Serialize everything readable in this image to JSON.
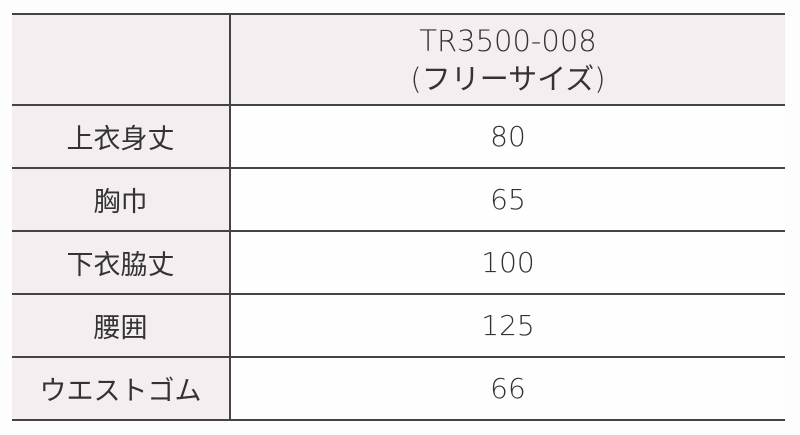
{
  "header": {
    "product_code": "TR3500-008",
    "size": "(フリーサイズ)"
  },
  "rows": [
    {
      "label": "上衣身丈",
      "value": "80"
    },
    {
      "label": "胸巾",
      "value": "65"
    },
    {
      "label": "下衣脇丈",
      "value": "100"
    },
    {
      "label": "腰囲",
      "value": "125"
    },
    {
      "label": "ウエストゴム",
      "value": "66"
    }
  ],
  "colors": {
    "label_bg": "#f5eef1",
    "border": "#444444",
    "text": "#333333"
  }
}
